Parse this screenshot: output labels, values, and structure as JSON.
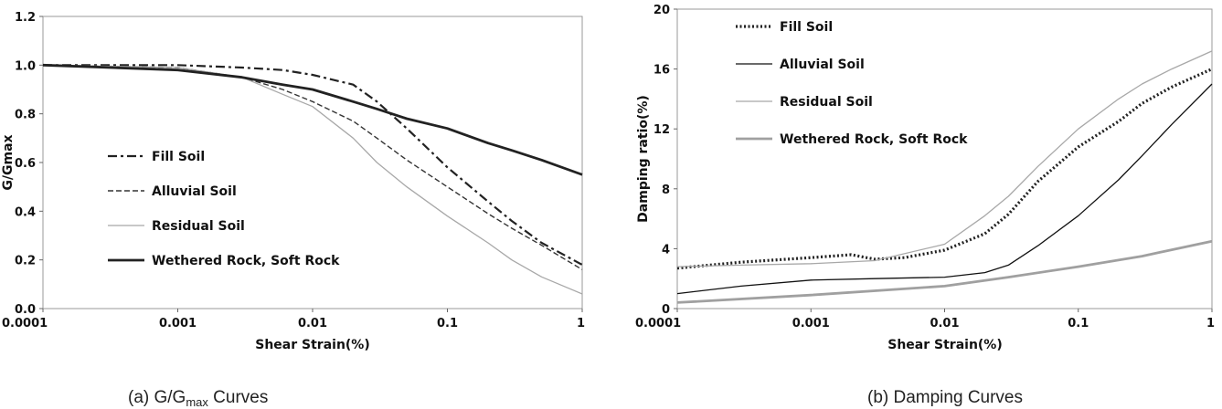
{
  "chart_data": [
    {
      "type": "line",
      "caption": "(a) G/G",
      "caption_sub": "max",
      "caption_tail": " Curves",
      "xlabel": "Shear Strain(%)",
      "ylabel": "G/Gmax",
      "xscale": "log",
      "xlim": [
        0.0001,
        1
      ],
      "ylim": [
        0,
        1.2
      ],
      "xticks": [
        "0.0001",
        "0.001",
        "0.01",
        "0.1",
        "1"
      ],
      "yticks": [
        "0.0",
        "0.2",
        "0.4",
        "0.6",
        "0.8",
        "1.0",
        "1.2"
      ],
      "grid": false,
      "legend": "middle-left",
      "series": [
        {
          "name": "Fill Soil",
          "color": "#222222",
          "style": "dashdot",
          "points": [
            [
              0.0001,
              1.0
            ],
            [
              0.001,
              1.0
            ],
            [
              0.003,
              0.99
            ],
            [
              0.006,
              0.98
            ],
            [
              0.01,
              0.96
            ],
            [
              0.02,
              0.92
            ],
            [
              0.03,
              0.85
            ],
            [
              0.05,
              0.74
            ],
            [
              0.1,
              0.58
            ],
            [
              0.2,
              0.44
            ],
            [
              0.3,
              0.36
            ],
            [
              0.5,
              0.27
            ],
            [
              1,
              0.18
            ]
          ]
        },
        {
          "name": "Alluvial Soil",
          "color": "#333333",
          "style": "dashed",
          "points": [
            [
              0.0001,
              1.0
            ],
            [
              0.001,
              0.99
            ],
            [
              0.003,
              0.95
            ],
            [
              0.006,
              0.9
            ],
            [
              0.01,
              0.85
            ],
            [
              0.02,
              0.77
            ],
            [
              0.03,
              0.7
            ],
            [
              0.05,
              0.61
            ],
            [
              0.1,
              0.5
            ],
            [
              0.2,
              0.39
            ],
            [
              0.3,
              0.33
            ],
            [
              0.5,
              0.26
            ],
            [
              1,
              0.16
            ]
          ]
        },
        {
          "name": "Residual Soil",
          "color": "#a8a8a8",
          "style": "solid",
          "points": [
            [
              0.0001,
              1.0
            ],
            [
              0.001,
              0.99
            ],
            [
              0.003,
              0.95
            ],
            [
              0.006,
              0.88
            ],
            [
              0.01,
              0.83
            ],
            [
              0.02,
              0.7
            ],
            [
              0.03,
              0.6
            ],
            [
              0.05,
              0.5
            ],
            [
              0.1,
              0.38
            ],
            [
              0.2,
              0.27
            ],
            [
              0.3,
              0.2
            ],
            [
              0.5,
              0.13
            ],
            [
              1,
              0.06
            ]
          ]
        },
        {
          "name": "Wethered Rock, Soft Rock",
          "color": "#222222",
          "style": "solid-thick",
          "points": [
            [
              0.0001,
              1.0
            ],
            [
              0.001,
              0.98
            ],
            [
              0.003,
              0.95
            ],
            [
              0.006,
              0.92
            ],
            [
              0.01,
              0.9
            ],
            [
              0.02,
              0.85
            ],
            [
              0.03,
              0.82
            ],
            [
              0.05,
              0.78
            ],
            [
              0.1,
              0.74
            ],
            [
              0.2,
              0.68
            ],
            [
              0.3,
              0.65
            ],
            [
              0.5,
              0.61
            ],
            [
              1,
              0.55
            ]
          ]
        }
      ]
    },
    {
      "type": "line",
      "caption": "(b) Damping Curves",
      "xlabel": "Shear Strain(%)",
      "ylabel": "Damping ratio(%)",
      "xscale": "log",
      "xlim": [
        0.0001,
        1
      ],
      "ylim": [
        0,
        20
      ],
      "xticks": [
        "0.0001",
        "0.001",
        "0.01",
        "0.1",
        "1"
      ],
      "yticks": [
        "0",
        "4",
        "8",
        "12",
        "16",
        "20"
      ],
      "grid": false,
      "legend": "top-left",
      "series": [
        {
          "name": "Fill Soil",
          "color": "#222222",
          "style": "dotted",
          "points": [
            [
              0.0001,
              2.7
            ],
            [
              0.0003,
              3.1
            ],
            [
              0.001,
              3.4
            ],
            [
              0.002,
              3.6
            ],
            [
              0.003,
              3.3
            ],
            [
              0.005,
              3.4
            ],
            [
              0.01,
              3.9
            ],
            [
              0.02,
              5.0
            ],
            [
              0.03,
              6.3
            ],
            [
              0.05,
              8.5
            ],
            [
              0.1,
              10.8
            ],
            [
              0.2,
              12.5
            ],
            [
              0.3,
              13.7
            ],
            [
              0.5,
              14.8
            ],
            [
              1,
              16.0
            ]
          ]
        },
        {
          "name": "Alluvial Soil",
          "color": "#111111",
          "style": "solid",
          "points": [
            [
              0.0001,
              1.0
            ],
            [
              0.0003,
              1.5
            ],
            [
              0.001,
              1.9
            ],
            [
              0.003,
              2.0
            ],
            [
              0.01,
              2.1
            ],
            [
              0.02,
              2.4
            ],
            [
              0.03,
              2.9
            ],
            [
              0.05,
              4.2
            ],
            [
              0.1,
              6.2
            ],
            [
              0.2,
              8.6
            ],
            [
              0.3,
              10.2
            ],
            [
              0.5,
              12.3
            ],
            [
              1,
              15.0
            ]
          ]
        },
        {
          "name": "Residual Soil",
          "color": "#a8a8a8",
          "style": "solid",
          "points": [
            [
              0.0001,
              2.8
            ],
            [
              0.0003,
              2.9
            ],
            [
              0.001,
              3.0
            ],
            [
              0.003,
              3.2
            ],
            [
              0.01,
              4.3
            ],
            [
              0.02,
              6.2
            ],
            [
              0.03,
              7.5
            ],
            [
              0.05,
              9.5
            ],
            [
              0.1,
              12.0
            ],
            [
              0.2,
              14.0
            ],
            [
              0.3,
              15.0
            ],
            [
              0.5,
              16.0
            ],
            [
              1,
              17.2
            ]
          ]
        },
        {
          "name": "Wethered Rock, Soft Rock",
          "color": "#a0a0a0",
          "style": "solid-thick",
          "points": [
            [
              0.0001,
              0.4
            ],
            [
              0.001,
              0.9
            ],
            [
              0.01,
              1.5
            ],
            [
              0.03,
              2.1
            ],
            [
              0.1,
              2.8
            ],
            [
              0.3,
              3.5
            ],
            [
              1,
              4.5
            ]
          ]
        }
      ]
    }
  ]
}
